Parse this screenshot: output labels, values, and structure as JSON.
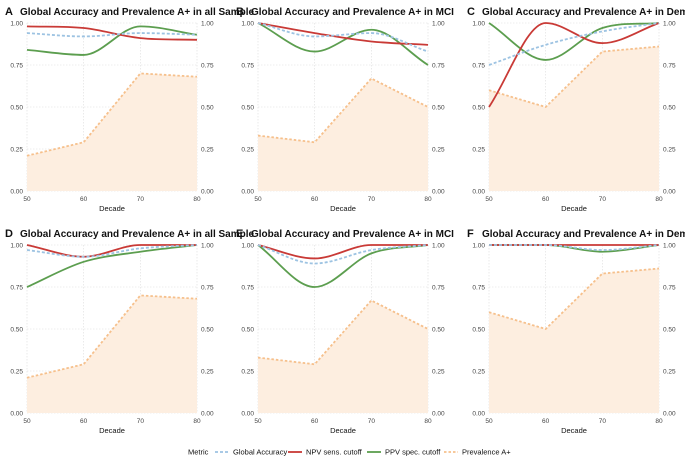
{
  "colors": {
    "accuracy": "#9dc3e2",
    "npv": "#c93a36",
    "ppv": "#5c9e4f",
    "prevalence": "#f6c08c",
    "prevalence_fill": "#fdeee0",
    "grid": "#dddddd",
    "text": "#111111",
    "tick": "#444444"
  },
  "legend": {
    "title": "Metric",
    "entries": [
      {
        "key": "accuracy",
        "label": "Global Accuracy"
      },
      {
        "key": "npv",
        "label": "NPV sens. cutoff"
      },
      {
        "key": "ppv",
        "label": "PPV spec. cutoff"
      },
      {
        "key": "prevalence",
        "label": "Prevalence A+"
      }
    ]
  },
  "chart_data": [
    {
      "type": "line",
      "letter": "A",
      "title": "Global Accuracy and Prevalence A+ in all Sample",
      "xlabel": "Decade",
      "ylabel": "",
      "xlim": [
        50,
        80
      ],
      "ylim": [
        0,
        1
      ],
      "x": [
        50,
        60,
        70,
        80
      ],
      "x_tick_labels": [
        "50",
        "60",
        "70",
        "80"
      ],
      "y_tick_labels": [
        "0.00",
        "0.25",
        "0.50",
        "0.75",
        "1.00"
      ],
      "series": [
        {
          "key": "accuracy",
          "name": "Global Accuracy",
          "values": [
            0.94,
            0.92,
            0.94,
            0.93
          ]
        },
        {
          "key": "npv",
          "name": "NPV sens. cutoff",
          "values": [
            0.98,
            0.97,
            0.91,
            0.9
          ]
        },
        {
          "key": "ppv",
          "name": "PPV spec. cutoff",
          "values": [
            0.84,
            0.81,
            0.98,
            0.93
          ]
        },
        {
          "key": "prevalence",
          "name": "Prevalence A+",
          "values": [
            0.21,
            0.29,
            0.7,
            0.68
          ]
        }
      ]
    },
    {
      "type": "line",
      "letter": "B",
      "title": "Global Accuracy and Prevalence A+ in MCI",
      "xlabel": "Decade",
      "ylabel": "",
      "xlim": [
        50,
        80
      ],
      "ylim": [
        0,
        1
      ],
      "x": [
        50,
        60,
        70,
        80
      ],
      "x_tick_labels": [
        "50",
        "60",
        "70",
        "80"
      ],
      "y_tick_labels": [
        "0.00",
        "0.25",
        "0.50",
        "0.75",
        "1.00"
      ],
      "series": [
        {
          "key": "accuracy",
          "name": "Global Accuracy",
          "values": [
            1.0,
            0.92,
            0.94,
            0.83
          ]
        },
        {
          "key": "npv",
          "name": "NPV sens. cutoff",
          "values": [
            1.0,
            0.94,
            0.89,
            0.87
          ]
        },
        {
          "key": "ppv",
          "name": "PPV spec. cutoff",
          "values": [
            1.0,
            0.83,
            0.96,
            0.75
          ]
        },
        {
          "key": "prevalence",
          "name": "Prevalence A+",
          "values": [
            0.33,
            0.29,
            0.67,
            0.5
          ]
        }
      ]
    },
    {
      "type": "line",
      "letter": "C",
      "title": "Global Accuracy and Prevalence A+ in Dementia",
      "xlabel": "Decade",
      "ylabel": "",
      "xlim": [
        50,
        80
      ],
      "ylim": [
        0,
        1
      ],
      "x": [
        50,
        60,
        70,
        80
      ],
      "x_tick_labels": [
        "50",
        "60",
        "70",
        "80"
      ],
      "y_tick_labels": [
        "0.00",
        "0.25",
        "0.50",
        "0.75",
        "1.00"
      ],
      "series": [
        {
          "key": "accuracy",
          "name": "Global Accuracy",
          "values": [
            0.75,
            0.87,
            0.95,
            1.0
          ]
        },
        {
          "key": "npv",
          "name": "NPV sens. cutoff",
          "values": [
            0.5,
            1.0,
            0.88,
            1.0
          ]
        },
        {
          "key": "ppv",
          "name": "PPV spec. cutoff",
          "values": [
            1.0,
            0.78,
            0.97,
            1.0
          ]
        },
        {
          "key": "prevalence",
          "name": "Prevalence A+",
          "values": [
            0.6,
            0.5,
            0.83,
            0.86
          ]
        }
      ]
    },
    {
      "type": "line",
      "letter": "D",
      "title": "Global Accuracy and Prevalence A+ in all Sample",
      "xlabel": "Decade",
      "ylabel": "",
      "xlim": [
        50,
        80
      ],
      "ylim": [
        0,
        1
      ],
      "x": [
        50,
        60,
        70,
        80
      ],
      "x_tick_labels": [
        "50",
        "60",
        "70",
        "80"
      ],
      "y_tick_labels": [
        "0.00",
        "0.25",
        "0.50",
        "0.75",
        "1.00"
      ],
      "series": [
        {
          "key": "accuracy",
          "name": "Global Accuracy",
          "values": [
            0.97,
            0.93,
            0.98,
            1.0
          ]
        },
        {
          "key": "npv",
          "name": "NPV sens. cutoff",
          "values": [
            1.0,
            0.93,
            1.0,
            1.0
          ]
        },
        {
          "key": "ppv",
          "name": "PPV spec. cutoff",
          "values": [
            0.75,
            0.9,
            0.96,
            1.0
          ]
        },
        {
          "key": "prevalence",
          "name": "Prevalence A+",
          "values": [
            0.21,
            0.29,
            0.7,
            0.68
          ]
        }
      ]
    },
    {
      "type": "line",
      "letter": "E",
      "title": "Global Accuracy and Prevalence A+ in MCI",
      "xlabel": "Decade",
      "ylabel": "",
      "xlim": [
        50,
        80
      ],
      "ylim": [
        0,
        1
      ],
      "x": [
        50,
        60,
        70,
        80
      ],
      "x_tick_labels": [
        "50",
        "60",
        "70",
        "80"
      ],
      "y_tick_labels": [
        "0.00",
        "0.25",
        "0.50",
        "0.75",
        "1.00"
      ],
      "series": [
        {
          "key": "accuracy",
          "name": "Global Accuracy",
          "values": [
            1.0,
            0.89,
            0.97,
            1.0
          ]
        },
        {
          "key": "npv",
          "name": "NPV sens. cutoff",
          "values": [
            1.0,
            0.92,
            1.0,
            1.0
          ]
        },
        {
          "key": "ppv",
          "name": "PPV spec. cutoff",
          "values": [
            1.0,
            0.75,
            0.95,
            1.0
          ]
        },
        {
          "key": "prevalence",
          "name": "Prevalence A+",
          "values": [
            0.33,
            0.29,
            0.67,
            0.5
          ]
        }
      ]
    },
    {
      "type": "line",
      "letter": "F",
      "title": "Global Accuracy and Prevalence A+ in Dementia",
      "xlabel": "Decade",
      "ylabel": "",
      "xlim": [
        50,
        80
      ],
      "ylim": [
        0,
        1
      ],
      "x": [
        50,
        60,
        70,
        80
      ],
      "x_tick_labels": [
        "50",
        "60",
        "70",
        "80"
      ],
      "y_tick_labels": [
        "0.00",
        "0.25",
        "0.50",
        "0.75",
        "1.00"
      ],
      "series": [
        {
          "key": "accuracy",
          "name": "Global Accuracy",
          "values": [
            1.0,
            1.0,
            0.97,
            1.0
          ]
        },
        {
          "key": "npv",
          "name": "NPV sens. cutoff",
          "values": [
            1.0,
            1.0,
            1.0,
            1.0
          ]
        },
        {
          "key": "ppv",
          "name": "PPV spec. cutoff",
          "values": [
            1.0,
            1.0,
            0.96,
            1.0
          ]
        },
        {
          "key": "prevalence",
          "name": "Prevalence A+",
          "values": [
            0.6,
            0.5,
            0.83,
            0.86
          ]
        }
      ]
    }
  ]
}
